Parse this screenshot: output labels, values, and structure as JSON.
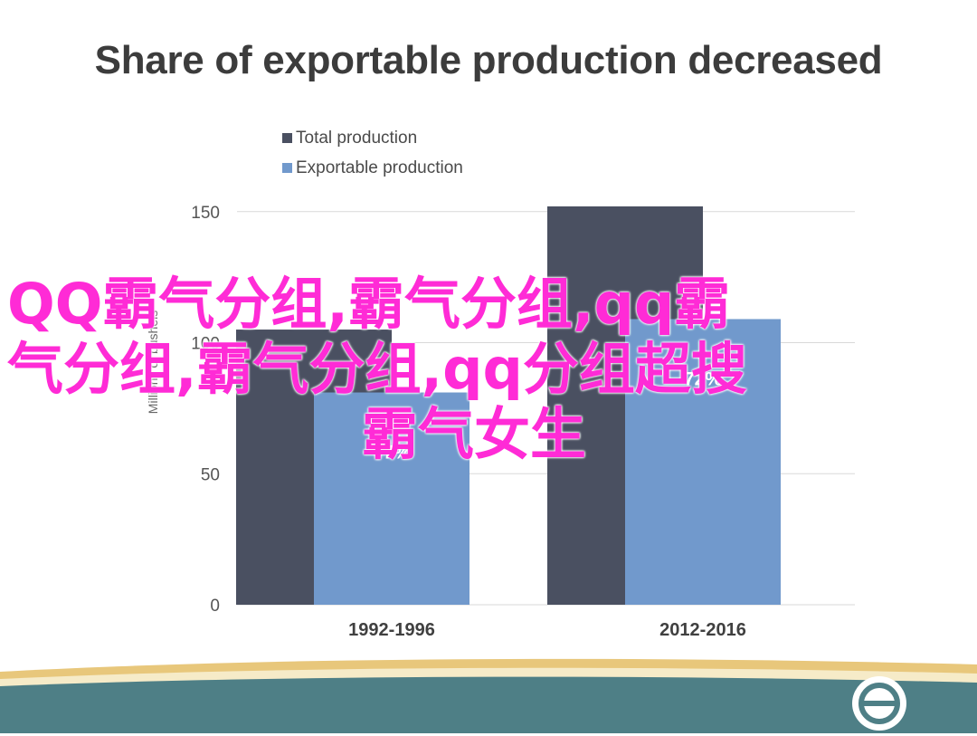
{
  "title": "Share of exportable production decreased",
  "watermark": {
    "line1": "QQ霸气分组,霸气分组,qq霸",
    "line2": "气分组,霸气分组,qq分组超搜",
    "line3": "霸气女生"
  },
  "colors": {
    "total": "#4a5061",
    "exportable": "#7199cc",
    "grid": "#d9d9d9",
    "watermark": "#ff2bd6",
    "footer_gold": "#e8c77b",
    "footer_teal": "#4e7f86"
  },
  "chart_data": {
    "type": "bar",
    "categories": [
      "1992-1996",
      "2012-2016"
    ],
    "series": [
      {
        "name": "Total production",
        "values": [
          105,
          152
        ]
      },
      {
        "name": "Exportable production",
        "values": [
          81,
          109
        ]
      }
    ],
    "data_labels": [
      "77%",
      "72%"
    ],
    "ylabel": "Millions of bushels",
    "yticks": [
      0,
      50,
      100,
      150
    ],
    "ylim": [
      0,
      152
    ],
    "grid": true,
    "legend": "top-left"
  },
  "footer": {
    "logo_icon": "circle-logo-icon"
  }
}
